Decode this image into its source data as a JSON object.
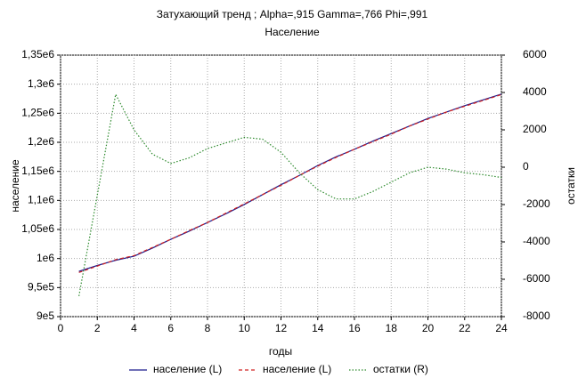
{
  "chart_data": {
    "type": "line",
    "title": "Затухающий тренд ; Alpha=,915 Gamma=,766 Phi=,991",
    "subtitle": "Население",
    "x_label": "годы",
    "y_label": "население",
    "y2_label": "остатки",
    "x": [
      1,
      2,
      3,
      4,
      5,
      6,
      7,
      8,
      9,
      10,
      11,
      12,
      13,
      14,
      15,
      16,
      17,
      18,
      19,
      20,
      21,
      22,
      23,
      24
    ],
    "series": [
      {
        "name": "население (L)",
        "color": "#1a1a8c",
        "style": "solid",
        "values": [
          978000,
          988000,
          997000,
          1004000,
          1018000,
          1033000,
          1047000,
          1062000,
          1077000,
          1093000,
          1110000,
          1127000,
          1143000,
          1160000,
          1175000,
          1188000,
          1202000,
          1215000,
          1228000,
          1241000,
          1252000,
          1263000,
          1273000,
          1283000
        ]
      },
      {
        "name": "население (L)",
        "color": "#d02020",
        "style": "dashed",
        "values": [
          976000,
          987000,
          998000,
          1005000,
          1019000,
          1033000,
          1048000,
          1062000,
          1078000,
          1094000,
          1110000,
          1126000,
          1143000,
          1159000,
          1174000,
          1188000,
          1201000,
          1214000,
          1228000,
          1240000,
          1252000,
          1262000,
          1272000,
          1282000
        ]
      },
      {
        "name": "остатки (R)",
        "color": "#2e8b2e",
        "style": "dotted",
        "axis": "y2",
        "values": [
          -6900,
          -1500,
          3900,
          2000,
          700,
          200,
          500,
          1000,
          1300,
          1600,
          1500,
          800,
          -300,
          -1200,
          -1700,
          -1700,
          -1300,
          -800,
          -300,
          0,
          -100,
          -300,
          -400,
          -550
        ]
      }
    ],
    "xlim": [
      0,
      24
    ],
    "xticks": [
      0,
      2,
      4,
      6,
      8,
      10,
      12,
      14,
      16,
      18,
      20,
      22,
      24
    ],
    "ylim": [
      900000,
      1350000
    ],
    "yticks": [
      {
        "value": 900000,
        "label": "9e5"
      },
      {
        "value": 950000,
        "label": "9,5e5"
      },
      {
        "value": 1000000,
        "label": "1e6"
      },
      {
        "value": 1050000,
        "label": "1,05e6"
      },
      {
        "value": 1100000,
        "label": "1,1e6"
      },
      {
        "value": 1150000,
        "label": "1,15e6"
      },
      {
        "value": 1200000,
        "label": "1,2e6"
      },
      {
        "value": 1250000,
        "label": "1,25e6"
      },
      {
        "value": 1300000,
        "label": "1,3e6"
      },
      {
        "value": 1350000,
        "label": "1,35e6"
      }
    ],
    "y2lim": [
      -8000,
      6000
    ],
    "y2ticks": [
      -8000,
      -6000,
      -4000,
      -2000,
      0,
      2000,
      4000,
      6000
    ],
    "grid": true,
    "legend": "bottom"
  }
}
